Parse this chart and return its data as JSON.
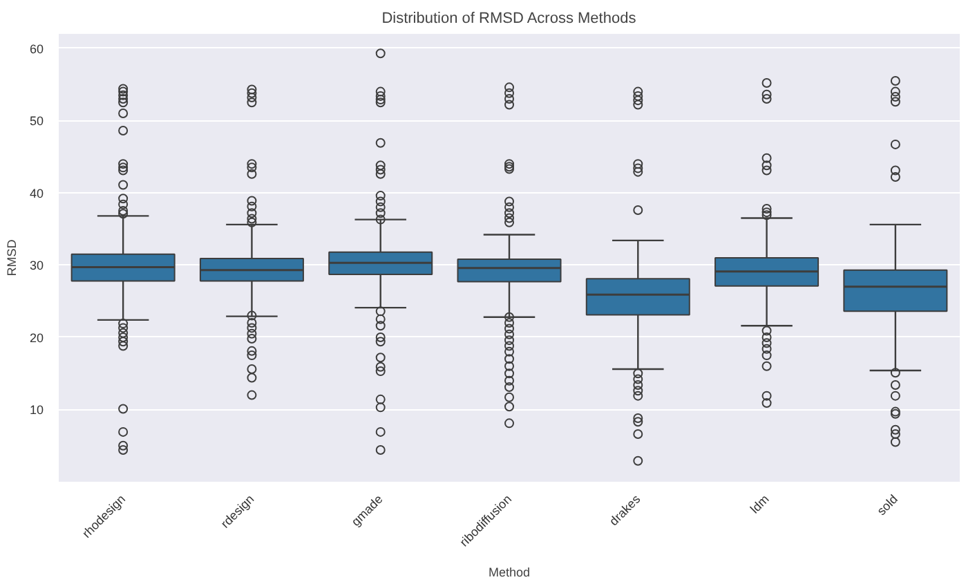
{
  "chart_data": {
    "type": "box",
    "title": "Distribution of RMSD Across Methods",
    "xlabel": "Method",
    "ylabel": "RMSD",
    "categories": [
      "rhodesign",
      "rdesign",
      "gmade",
      "ribodiffusion",
      "drakes",
      "ldm",
      "sold"
    ],
    "color": "#3274a1",
    "ylim": [
      0,
      62
    ],
    "yticks": [
      10,
      20,
      30,
      40,
      50,
      60
    ],
    "grid": "y",
    "boxes": [
      {
        "low": 22.4,
        "q1": 27.8,
        "median": 29.7,
        "q3": 31.5,
        "high": 36.8,
        "outliers": [
          54.4,
          54,
          53.5,
          53,
          52.5,
          51,
          48.6,
          44,
          43.5,
          43.1,
          41.1,
          39.2,
          38.4,
          37.5,
          37.1,
          21.9,
          21.3,
          20.6,
          20,
          19.4,
          18.8,
          10.1,
          6.9,
          5,
          4.4
        ]
      },
      {
        "low": 22.9,
        "q1": 27.8,
        "median": 29.3,
        "q3": 30.9,
        "high": 35.6,
        "outliers": [
          54.3,
          53.8,
          53.2,
          52.5,
          44,
          43.5,
          42.6,
          38.9,
          38.1,
          37.2,
          36.4,
          35.9,
          23,
          22,
          21.3,
          20.5,
          19.8,
          18.1,
          17.5,
          15.6,
          14.4,
          12
        ]
      },
      {
        "low": 24.1,
        "q1": 28.7,
        "median": 30.3,
        "q3": 31.8,
        "high": 36.3,
        "outliers": [
          59.3,
          54,
          53.4,
          52.9,
          52.5,
          46.9,
          43.8,
          43.2,
          42.6,
          39.6,
          38.8,
          38,
          37.2,
          36.3,
          23.6,
          22.5,
          21.6,
          20,
          19.4,
          17.2,
          15.9,
          15.3,
          11.4,
          10.3,
          6.9,
          4.4
        ]
      },
      {
        "low": 22.8,
        "q1": 27.7,
        "median": 29.6,
        "q3": 30.8,
        "high": 34.2,
        "outliers": [
          54.6,
          53.8,
          53,
          52.2,
          44,
          43.6,
          43.3,
          38.8,
          38,
          37.2,
          36.5,
          35.9,
          22.8,
          22,
          21.2,
          20.4,
          19.6,
          18.8,
          18,
          17,
          16,
          15,
          14,
          13.1,
          11.7,
          10.4,
          8.1
        ]
      },
      {
        "low": 15.6,
        "q1": 23.1,
        "median": 25.9,
        "q3": 28.1,
        "high": 33.4,
        "outliers": [
          54,
          53.4,
          52.8,
          52.2,
          44,
          43.4,
          42.9,
          37.6,
          15,
          14.2,
          13.4,
          12.6,
          11.9,
          8.8,
          8.3,
          6.6,
          2.9
        ]
      },
      {
        "low": 21.6,
        "q1": 27.1,
        "median": 29.1,
        "q3": 31,
        "high": 36.5,
        "outliers": [
          55.2,
          53.6,
          53,
          44.8,
          43.8,
          43.1,
          37.8,
          37.3,
          36.9,
          20.9,
          20,
          19.2,
          18.4,
          17.5,
          16,
          11.9,
          10.9
        ]
      },
      {
        "low": 15.4,
        "q1": 23.6,
        "median": 27,
        "q3": 29.3,
        "high": 35.6,
        "outliers": [
          55.5,
          54,
          53.3,
          52.6,
          46.7,
          43.1,
          42.2,
          15.1,
          13.4,
          11.9,
          9.7,
          9.4,
          7.2,
          6.6,
          5.5
        ]
      }
    ]
  }
}
